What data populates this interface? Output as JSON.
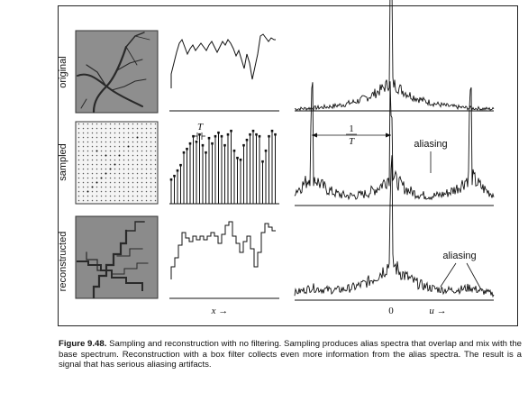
{
  "row_labels": [
    "original",
    "sampled",
    "reconstructed"
  ],
  "annotations": {
    "period_T": "T",
    "freq_numerator": "1",
    "freq_denominator": "T",
    "aliasing_sampled": "aliasing",
    "aliasing_reconstructed": "aliasing"
  },
  "axis_labels": {
    "x": "x →",
    "zero": "0",
    "u": "u →"
  },
  "caption": {
    "label": "Figure 9.48.",
    "text": "Sampling and reconstruction with no filtering. Sampling produces alias spectra that overlap and mix with the base spectrum. Reconstruction with a box filter collects even more information from the alias spectra. The result is a signal that has serious aliasing artifacts."
  }
}
